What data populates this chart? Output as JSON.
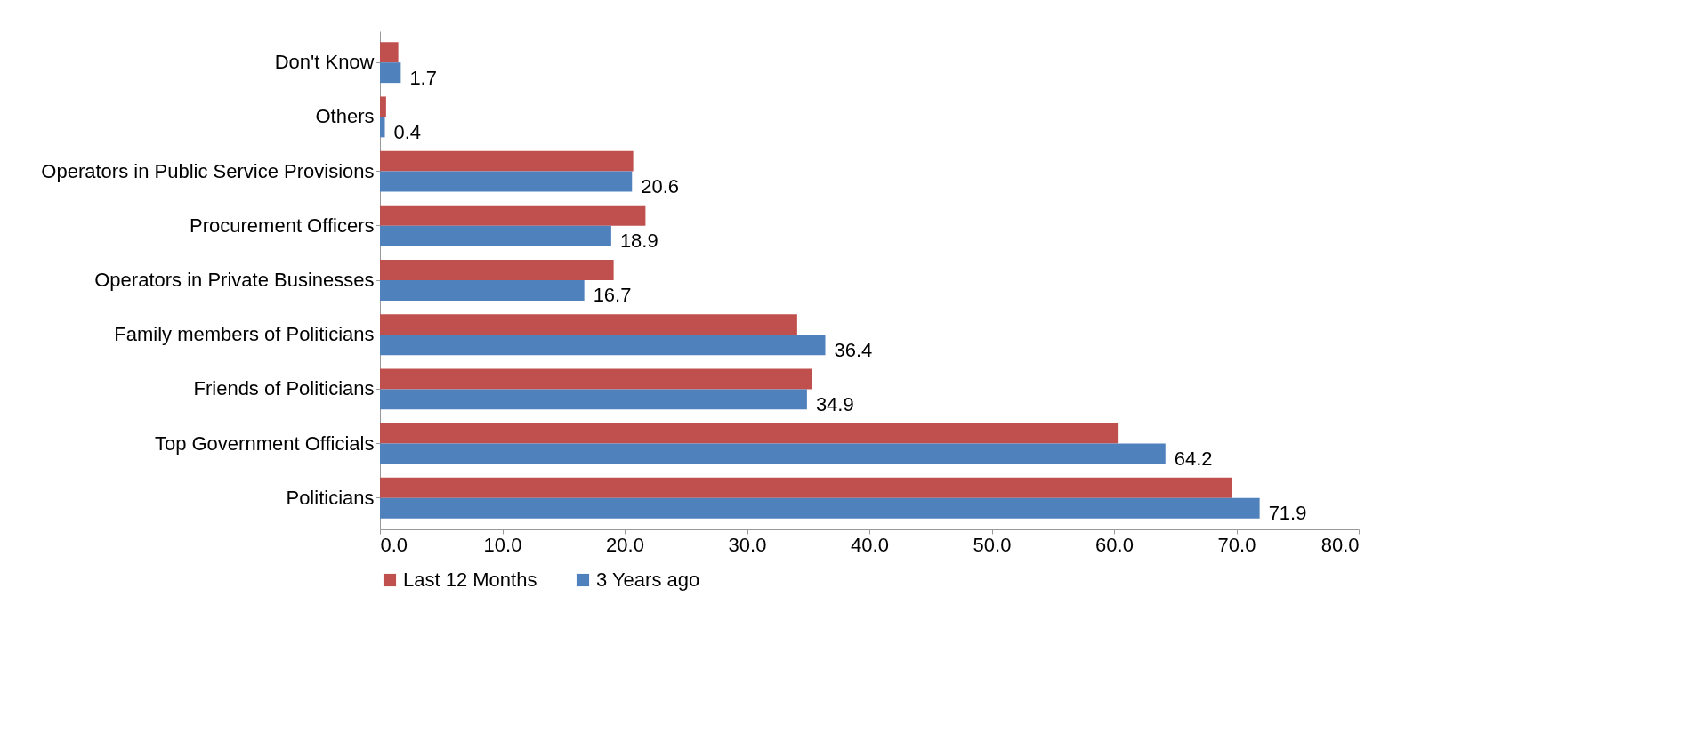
{
  "chart_data": {
    "type": "bar",
    "orientation": "horizontal",
    "categories": [
      "Don't Know",
      "Others",
      "Operators in Public Service Provisions",
      "Procurement Officers",
      "Operators in Private Businesses",
      "Family members of Politicians",
      "Friends of Politicians",
      "Top Government Officials",
      "Politicians"
    ],
    "series": [
      {
        "name": "Last 12 Months",
        "color": "#c0504d",
        "values": [
          1.5,
          0.5,
          20.7,
          21.7,
          19.1,
          34.1,
          35.3,
          60.3,
          69.6
        ]
      },
      {
        "name": "3 Years ago",
        "color": "#4f81bd",
        "values": [
          1.7,
          0.4,
          20.6,
          18.9,
          16.7,
          36.4,
          34.9,
          64.2,
          71.9
        ],
        "value_labels": [
          "1.7",
          "0.4",
          "20.6",
          "18.9",
          "16.7",
          "36.4",
          "34.9",
          "64.2",
          "71.9"
        ]
      }
    ],
    "xlim": [
      0,
      80
    ],
    "xticks": [
      {
        "value": 0,
        "label": "0.0"
      },
      {
        "value": 10,
        "label": "10.0"
      },
      {
        "value": 20,
        "label": "20.0"
      },
      {
        "value": 30,
        "label": "30.0"
      },
      {
        "value": 40,
        "label": "40.0"
      },
      {
        "value": 50,
        "label": "50.0"
      },
      {
        "value": 60,
        "label": "60.0"
      },
      {
        "value": 70,
        "label": "70.0"
      },
      {
        "value": 80,
        "label": "80.0"
      }
    ],
    "grid": false,
    "legend": "bottom"
  }
}
